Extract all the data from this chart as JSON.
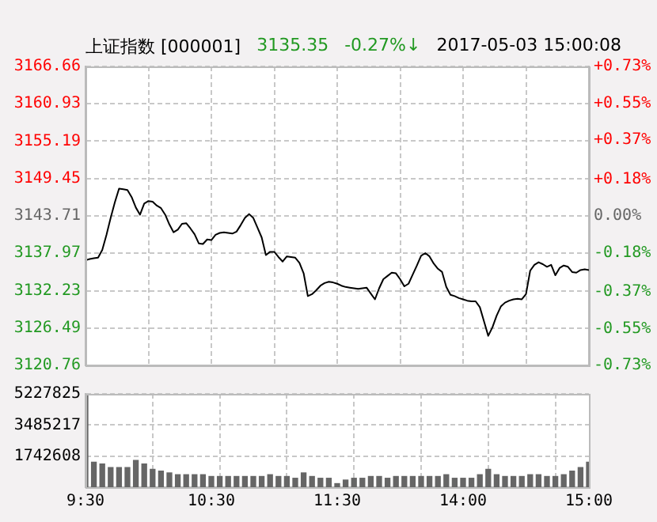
{
  "chart_data": [
    {
      "type": "line",
      "title": "上证指数 [000001]",
      "annotations": [
        "3135.35",
        "-0.27%↓",
        "2017-05-03 15:00:08"
      ],
      "categories": [
        null,
        null,
        null,
        null,
        null,
        null,
        null,
        null,
        null,
        null,
        null,
        null,
        null,
        null,
        null,
        null,
        null,
        null,
        null,
        null,
        null,
        null,
        null,
        null,
        null,
        null,
        null,
        null,
        null,
        null,
        null,
        null,
        null,
        null,
        null,
        null,
        null,
        null,
        null,
        null,
        null,
        null,
        null,
        null,
        null,
        null,
        null,
        null,
        null,
        null,
        null,
        null,
        null,
        null,
        null,
        null,
        null,
        null,
        null,
        null,
        null,
        null,
        null,
        null,
        null,
        null,
        null,
        null,
        null,
        null,
        null,
        null,
        null,
        null,
        null,
        null,
        null,
        null,
        null,
        null,
        null,
        null,
        null,
        null,
        null,
        null,
        null,
        null,
        null,
        null,
        null,
        null,
        null,
        null,
        null,
        null,
        null,
        null,
        null,
        null,
        null,
        null,
        null,
        null,
        null,
        null,
        null,
        null,
        null,
        null,
        null,
        null,
        null,
        null,
        null,
        null,
        null,
        null,
        null,
        null,
        null
      ],
      "series": [
        {
          "color": "#000000",
          "values": [
            3136.9,
            3137.1,
            3137.2,
            3137.3,
            3138.5,
            3140.8,
            3143.4,
            3145.8,
            3147.9,
            3147.8,
            3147.7,
            3146.6,
            3145.0,
            3143.9,
            3145.6,
            3146.0,
            3145.9,
            3145.3,
            3144.9,
            3143.9,
            3142.4,
            3141.2,
            3141.6,
            3142.5,
            3142.6,
            3141.8,
            3140.9,
            3139.5,
            3139.4,
            3140.1,
            3140.0,
            3140.8,
            3141.1,
            3141.2,
            3141.1,
            3141.0,
            3141.3,
            3142.3,
            3143.4,
            3144.0,
            3143.4,
            3141.9,
            3140.4,
            3137.7,
            3138.2,
            3138.2,
            3137.4,
            3136.7,
            3137.5,
            3137.4,
            3137.3,
            3136.5,
            3134.9,
            3131.4,
            3131.7,
            3132.3,
            3133.0,
            3133.4,
            3133.6,
            3133.5,
            3133.3,
            3133.0,
            3132.8,
            3132.7,
            3132.6,
            3132.5,
            3132.6,
            3132.7,
            3131.8,
            3130.9,
            3132.6,
            3134.0,
            3134.5,
            3135.0,
            3134.9,
            3134.0,
            3132.9,
            3133.3,
            3134.7,
            3136.1,
            3137.6,
            3138.0,
            3137.5,
            3136.4,
            3135.6,
            3135.1,
            3132.8,
            3131.6,
            3131.4,
            3131.1,
            3130.9,
            3130.7,
            3130.6,
            3130.6,
            3129.7,
            3127.5,
            3125.3,
            3126.6,
            3128.4,
            3129.8,
            3130.4,
            3130.7,
            3130.9,
            3131.0,
            3130.9,
            3131.7,
            3135.3,
            3136.2,
            3136.6,
            3136.3,
            3135.9,
            3136.2,
            3134.6,
            3135.7,
            3136.1,
            3135.9,
            3135.1,
            3135.0,
            3135.4,
            3135.5,
            3135.4
          ]
        }
      ],
      "ylim": [
        3120.76,
        3166.66
      ],
      "yticks": [
        3120.76,
        3126.49,
        3132.23,
        3137.97,
        3143.71,
        3149.45,
        3155.19,
        3160.93,
        3166.66
      ],
      "y2lim": [
        -0.73,
        0.73
      ],
      "y2ticks": [
        {
          "value": -0.73,
          "label": "-0.73%"
        },
        {
          "value": -0.55,
          "label": "-0.55%"
        },
        {
          "value": -0.37,
          "label": "-0.37%"
        },
        {
          "value": -0.18,
          "label": "-0.18%"
        },
        {
          "value": 0,
          "label": "0.00%"
        },
        {
          "value": 0.18,
          "label": "+0.18%"
        },
        {
          "value": 0.37,
          "label": "+0.37%"
        },
        {
          "value": 0.55,
          "label": "+0.55%"
        },
        {
          "value": 0.73,
          "label": "+0.73%"
        }
      ],
      "grid": true,
      "tick_labels": "y",
      "marker": "none",
      "line_style": "solid"
    },
    {
      "type": "bar",
      "color": "#666666",
      "categories": [
        "9:30",
        null,
        null,
        null,
        null,
        null,
        null,
        null,
        null,
        null,
        null,
        null,
        null,
        null,
        null,
        "10:30",
        null,
        null,
        null,
        null,
        null,
        null,
        null,
        null,
        null,
        null,
        null,
        null,
        null,
        null,
        "11:30",
        null,
        null,
        null,
        null,
        null,
        null,
        null,
        null,
        null,
        null,
        null,
        null,
        null,
        null,
        "14:00",
        null,
        null,
        null,
        null,
        null,
        null,
        null,
        null,
        null,
        null,
        null,
        null,
        null,
        null,
        "15:00"
      ],
      "values": [
        5200000,
        1400000,
        1300000,
        1100000,
        1100000,
        1100000,
        1500000,
        1300000,
        1000000,
        900000,
        800000,
        700000,
        700000,
        700000,
        700000,
        600000,
        600000,
        600000,
        600000,
        600000,
        600000,
        600000,
        700000,
        600000,
        600000,
        500000,
        800000,
        600000,
        500000,
        500000,
        200000,
        400000,
        500000,
        500000,
        600000,
        600000,
        500000,
        600000,
        600000,
        600000,
        600000,
        600000,
        600000,
        700000,
        500000,
        500000,
        500000,
        700000,
        1000000,
        700000,
        600000,
        600000,
        600000,
        700000,
        700000,
        600000,
        600000,
        700000,
        900000,
        1100000,
        1400000
      ],
      "ylim": [
        0,
        5227825
      ],
      "yticks": [
        1742608,
        3485217,
        5227825
      ],
      "grid": true
    }
  ]
}
